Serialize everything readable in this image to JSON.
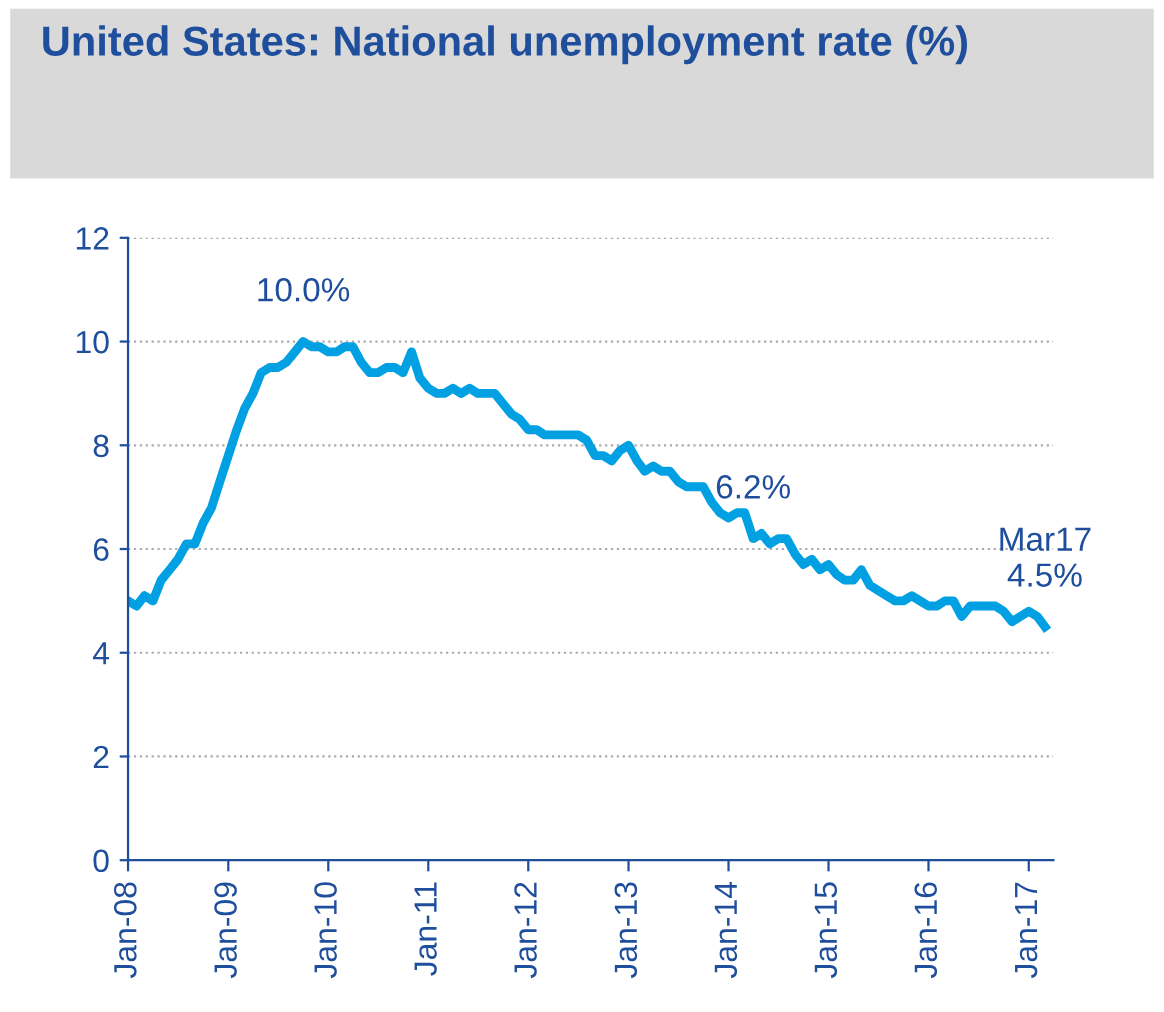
{
  "chart_data": {
    "type": "line",
    "title": "United States: National unemployment rate (%)",
    "x": [
      "2008-01",
      "2008-02",
      "2008-03",
      "2008-04",
      "2008-05",
      "2008-06",
      "2008-07",
      "2008-08",
      "2008-09",
      "2008-10",
      "2008-11",
      "2008-12",
      "2009-01",
      "2009-02",
      "2009-03",
      "2009-04",
      "2009-05",
      "2009-06",
      "2009-07",
      "2009-08",
      "2009-09",
      "2009-10",
      "2009-11",
      "2009-12",
      "2010-01",
      "2010-02",
      "2010-03",
      "2010-04",
      "2010-05",
      "2010-06",
      "2010-07",
      "2010-08",
      "2010-09",
      "2010-10",
      "2010-11",
      "2010-12",
      "2011-01",
      "2011-02",
      "2011-03",
      "2011-04",
      "2011-05",
      "2011-06",
      "2011-07",
      "2011-08",
      "2011-09",
      "2011-10",
      "2011-11",
      "2011-12",
      "2012-01",
      "2012-02",
      "2012-03",
      "2012-04",
      "2012-05",
      "2012-06",
      "2012-07",
      "2012-08",
      "2012-09",
      "2012-10",
      "2012-11",
      "2012-12",
      "2013-01",
      "2013-02",
      "2013-03",
      "2013-04",
      "2013-05",
      "2013-06",
      "2013-07",
      "2013-08",
      "2013-09",
      "2013-10",
      "2013-11",
      "2013-12",
      "2014-01",
      "2014-02",
      "2014-03",
      "2014-04",
      "2014-05",
      "2014-06",
      "2014-07",
      "2014-08",
      "2014-09",
      "2014-10",
      "2014-11",
      "2014-12",
      "2015-01",
      "2015-02",
      "2015-03",
      "2015-04",
      "2015-05",
      "2015-06",
      "2015-07",
      "2015-08",
      "2015-09",
      "2015-10",
      "2015-11",
      "2015-12",
      "2016-01",
      "2016-02",
      "2016-03",
      "2016-04",
      "2016-05",
      "2016-06",
      "2016-07",
      "2016-08",
      "2016-09",
      "2016-10",
      "2016-11",
      "2016-12",
      "2017-01",
      "2017-02",
      "2017-03"
    ],
    "series": [
      {
        "color": "#00a0e3",
        "values": [
          5.0,
          4.9,
          5.1,
          5.0,
          5.4,
          5.6,
          5.8,
          6.1,
          6.1,
          6.5,
          6.8,
          7.3,
          7.8,
          8.3,
          8.7,
          9.0,
          9.4,
          9.5,
          9.5,
          9.6,
          9.8,
          10.0,
          9.9,
          9.9,
          9.8,
          9.8,
          9.9,
          9.9,
          9.6,
          9.4,
          9.4,
          9.5,
          9.5,
          9.4,
          9.8,
          9.3,
          9.1,
          9.0,
          9.0,
          9.1,
          9.0,
          9.1,
          9.0,
          9.0,
          9.0,
          8.8,
          8.6,
          8.5,
          8.3,
          8.3,
          8.2,
          8.2,
          8.2,
          8.2,
          8.2,
          8.1,
          7.8,
          7.8,
          7.7,
          7.9,
          8.0,
          7.7,
          7.5,
          7.6,
          7.5,
          7.5,
          7.3,
          7.2,
          7.2,
          7.2,
          6.9,
          6.7,
          6.6,
          6.7,
          6.7,
          6.2,
          6.3,
          6.1,
          6.2,
          6.2,
          5.9,
          5.7,
          5.8,
          5.6,
          5.7,
          5.5,
          5.4,
          5.4,
          5.6,
          5.3,
          5.2,
          5.1,
          5.0,
          5.0,
          5.1,
          5.0,
          4.9,
          4.9,
          5.0,
          5.0,
          4.7,
          4.9,
          4.9,
          4.9,
          4.9,
          4.8,
          4.6,
          4.7,
          4.8,
          4.7,
          4.5
        ]
      }
    ],
    "xlim": [
      "2008-01",
      "2017-04"
    ],
    "xticks": [
      {
        "value": "2008-01",
        "label": "Jan-08"
      },
      {
        "value": "2009-01",
        "label": "Jan-09"
      },
      {
        "value": "2010-01",
        "label": "Jan-10"
      },
      {
        "value": "2011-01",
        "label": "Jan-11"
      },
      {
        "value": "2012-01",
        "label": "Jan-12"
      },
      {
        "value": "2013-01",
        "label": "Jan-13"
      },
      {
        "value": "2014-01",
        "label": "Jan-14"
      },
      {
        "value": "2015-01",
        "label": "Jan-15"
      },
      {
        "value": "2016-01",
        "label": "Jan-16"
      },
      {
        "value": "2017-01",
        "label": "Jan-17"
      }
    ],
    "ylim": [
      0,
      12
    ],
    "yticks": [
      0,
      2,
      4,
      6,
      8,
      10,
      12
    ],
    "grid": "y",
    "legend": false,
    "marker": "none",
    "line_style": "solid",
    "annotations": [
      {
        "text": "10.0%",
        "x": "2009-10",
        "y": 10.0
      },
      {
        "text": "6.2%",
        "x": "2014-04",
        "y": 6.2
      },
      {
        "text": "Mar17\n4.5%",
        "x": "2017-03",
        "y": 4.5
      }
    ]
  }
}
